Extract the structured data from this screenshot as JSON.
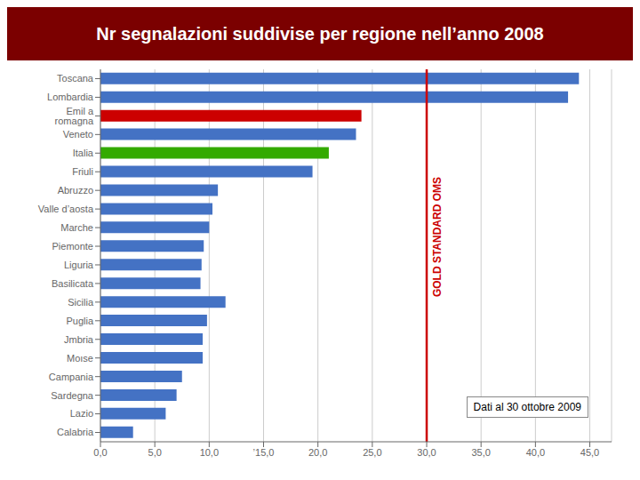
{
  "chart_data": {
    "type": "bar",
    "orientation": "horizontal",
    "title": "Nr segnalazioni suddivise per regione nell’anno 2008",
    "subtitle": "Dati al 30 ottobre 2009",
    "categories": [
      "Toscana",
      "Lombardia",
      "Emil a romagna",
      "Veneto",
      "Italia",
      "Friuli",
      "Abruzzo",
      "Valle d’aosta",
      "Marche",
      "Piemonte",
      "Liguria",
      "Basilicata",
      "Sicilia",
      "Puglia",
      "Jmbria",
      "Moıse",
      "Campania",
      "Sardegna",
      "Lazio",
      "Calabria"
    ],
    "values": [
      44.0,
      43.0,
      24.0,
      23.5,
      21.0,
      19.5,
      10.8,
      10.3,
      10.0,
      9.5,
      9.3,
      9.2,
      11.5,
      9.8,
      9.4,
      9.4,
      7.5,
      7.0,
      6.0,
      3.0
    ],
    "colors": [
      "#4472C4",
      "#4472C4",
      "#CC0000",
      "#4472C4",
      "#33AA00",
      "#4472C4",
      "#4472C4",
      "#4472C4",
      "#4472C4",
      "#4472C4",
      "#4472C4",
      "#4472C4",
      "#4472C4",
      "#4472C4",
      "#4472C4",
      "#4472C4",
      "#4472C4",
      "#4472C4",
      "#4472C4",
      "#4472C4"
    ],
    "xlim": [
      0,
      47
    ],
    "xticks": [
      {
        "value": 0,
        "label": "0,0"
      },
      {
        "value": 5,
        "label": "5,0"
      },
      {
        "value": 10,
        "label": "10,0"
      },
      {
        "value": 15,
        "label": "’15,0"
      },
      {
        "value": 20,
        "label": "20,0"
      },
      {
        "value": 25,
        "label": "25,0"
      },
      {
        "value": 30,
        "label": "30,0"
      },
      {
        "value": 35,
        "label": "35,0"
      },
      {
        "value": 40,
        "label": "40,0"
      },
      {
        "value": 45,
        "label": "45,0"
      }
    ],
    "grid": true,
    "annotations": [
      {
        "text": "GOLD STANDARD OMS",
        "x": 30,
        "color": "#CC0000"
      }
    ]
  }
}
